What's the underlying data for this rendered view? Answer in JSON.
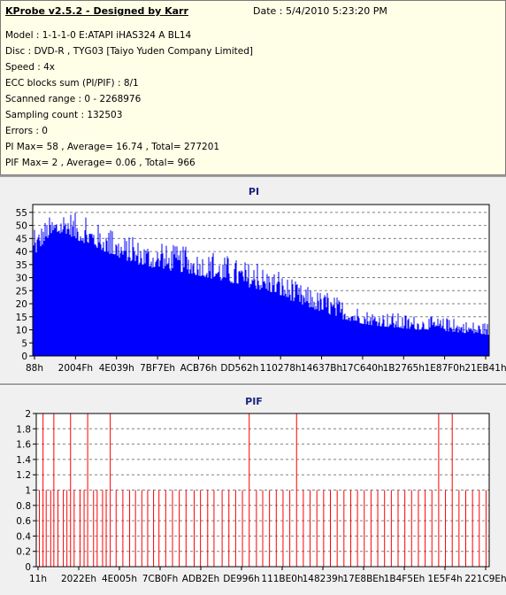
{
  "header": {
    "app_title": "KProbe v2.5.2 - Designed by Karr",
    "date_label": "Date : 5/4/2010 5:23:20 PM"
  },
  "info_lines": [
    "Model : 1-1-1-0 E:ATAPI  iHAS324  A      BL14",
    "Disc : DVD-R , TYG03 [Taiyo Yuden Company Limited]",
    "Speed : 4x",
    "ECC blocks sum (PI/PIF) : 8/1",
    "Scanned range : 0 - 2268976",
    "Sampling count : 132503",
    "Errors : 0",
    "PI Max= 58 , Average= 16.74 , Total= 277201",
    "PIF Max= 2 , Average= 0.06 , Total= 966"
  ],
  "colors": {
    "pi_fill": "#0000ff",
    "pif_bar": "#ff0000",
    "grid": "#808080",
    "panel_bg": "#f0f0f0",
    "info_bg": "#ffffe8"
  },
  "chart_data": [
    {
      "type": "area",
      "title": "PI",
      "y_ticks": [
        "0",
        "5",
        "10",
        "15",
        "20",
        "25",
        "30",
        "35",
        "40",
        "45",
        "50",
        "55"
      ],
      "ylim": [
        0,
        58
      ],
      "x_tick_labels": [
        "88h",
        "2004Fh",
        "4E039h",
        "7BF7Eh",
        "ACB76h",
        "DD562h",
        "110278h",
        "14637Bh",
        "17C640h",
        "1B2765h",
        "1E87F0h",
        "21EB41h"
      ],
      "grid": true,
      "series": [
        {
          "profile_x_fraction": [
            0.0,
            0.03,
            0.07,
            0.1,
            0.13,
            0.18,
            0.23,
            0.28,
            0.33,
            0.38,
            0.43,
            0.48,
            0.53,
            0.58,
            0.63,
            0.68,
            0.73,
            0.78,
            0.83,
            0.88,
            0.93,
            1.0
          ],
          "base_values": [
            38,
            45,
            47,
            44,
            42,
            38,
            35,
            33,
            32,
            30,
            28,
            26,
            24,
            20,
            17,
            14,
            12,
            11,
            10,
            10,
            9,
            8
          ],
          "peak_values": [
            48,
            53,
            57,
            54,
            52,
            47,
            45,
            43,
            42,
            40,
            38,
            36,
            33,
            28,
            25,
            22,
            18,
            17,
            16,
            15,
            14,
            13
          ]
        }
      ]
    },
    {
      "type": "bar",
      "title": "PIF",
      "y_ticks": [
        "0",
        "0.2",
        "0.4",
        "0.6",
        "0.8",
        "1",
        "1.2",
        "1.4",
        "1.6",
        "1.8",
        "2"
      ],
      "ylim": [
        0,
        2
      ],
      "x_tick_labels": [
        "11h",
        "2022Eh",
        "4E005h",
        "7CB0Fh",
        "ADB2Eh",
        "DE996h",
        "111BE0h",
        "148239h",
        "17E8BEh",
        "1B4F5Eh",
        "1E5F4h",
        "221C9Eh"
      ],
      "grid": true,
      "series": [
        {
          "x_fraction": [
            0.005,
            0.013,
            0.02,
            0.03,
            0.037,
            0.046,
            0.058,
            0.066,
            0.074,
            0.082,
            0.095,
            0.104,
            0.112,
            0.125,
            0.133,
            0.145,
            0.153,
            0.162,
            0.175,
            0.19,
            0.205,
            0.218,
            0.232,
            0.245,
            0.258,
            0.27,
            0.285,
            0.3,
            0.315,
            0.33,
            0.348,
            0.362,
            0.378,
            0.392,
            0.41,
            0.425,
            0.44,
            0.455,
            0.47,
            0.486,
            0.5,
            0.515,
            0.53,
            0.545,
            0.56,
            0.575,
            0.59,
            0.605,
            0.62,
            0.635,
            0.65,
            0.665,
            0.68,
            0.695,
            0.71,
            0.725,
            0.74,
            0.755,
            0.77,
            0.785,
            0.8,
            0.815,
            0.83,
            0.845,
            0.86,
            0.875,
            0.89,
            0.905,
            0.92,
            0.935,
            0.95,
            0.965,
            0.98,
            0.995
          ],
          "values": [
            1,
            2,
            1,
            1,
            2,
            1,
            1,
            1,
            2,
            1,
            1,
            1,
            2,
            1,
            1,
            1,
            1,
            2,
            1,
            1,
            1,
            1,
            1,
            1,
            1,
            1,
            1,
            1,
            1,
            1,
            1,
            1,
            1,
            1,
            1,
            1,
            1,
            1,
            2,
            1,
            1,
            1,
            1,
            1,
            1,
            2,
            1,
            1,
            1,
            1,
            1,
            1,
            1,
            1,
            1,
            1,
            1,
            1,
            1,
            1,
            1,
            1,
            1,
            1,
            1,
            1,
            2,
            1,
            2,
            1,
            1,
            1,
            1,
            1
          ]
        }
      ]
    }
  ]
}
